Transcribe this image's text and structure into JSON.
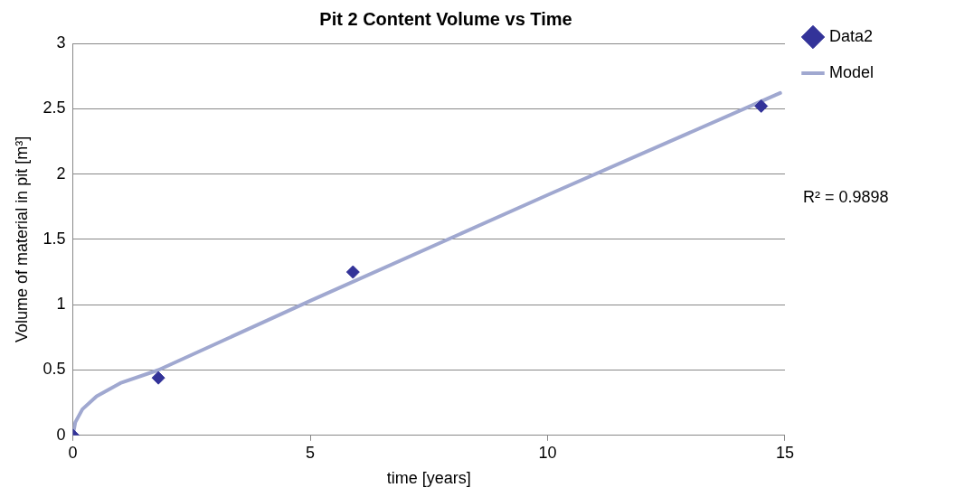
{
  "chart_data": {
    "type": "scatter",
    "title": "Pit 2 Content Volume vs Time",
    "xlabel": "time [years]",
    "ylabel": "Volume of material in pit [m³]",
    "xlim": [
      0,
      15
    ],
    "xticks": [
      0,
      5,
      10,
      15
    ],
    "ylim": [
      0,
      3
    ],
    "yticks": [
      0,
      0.5,
      1,
      1.5,
      2,
      2.5,
      3
    ],
    "grid": "y",
    "legend": "right",
    "annotations": [
      "R² = 0.9898"
    ],
    "series": [
      {
        "name": "Data2",
        "type": "scatter",
        "marker": "diamond",
        "color": "#333399",
        "x": [
          0,
          1.8,
          5.9,
          14.5
        ],
        "values": [
          0,
          0.44,
          1.25,
          2.52
        ]
      },
      {
        "name": "Model",
        "type": "line",
        "marker": "none",
        "line_style": "solid",
        "color": "#a0a8d0",
        "x": [
          0,
          0.05,
          0.2,
          0.5,
          1,
          1.8,
          5,
          10,
          14.9
        ],
        "values": [
          0,
          0.1,
          0.2,
          0.3,
          0.4,
          0.5,
          1.03,
          1.84,
          2.62
        ]
      }
    ]
  }
}
